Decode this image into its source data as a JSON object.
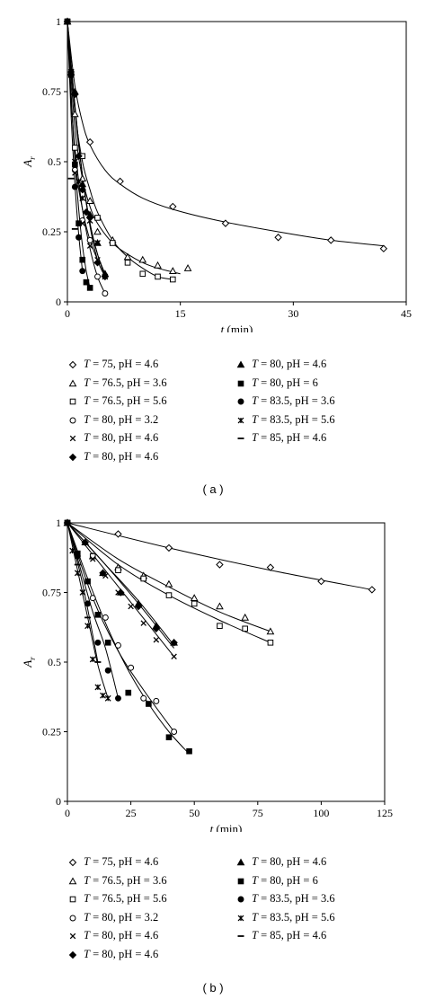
{
  "chart_data": [
    {
      "type": "scatter",
      "panel_label": "( a )",
      "xlabel": "t (min)",
      "ylabel": "A_r",
      "xlim": [
        0,
        45
      ],
      "ylim": [
        0,
        1
      ],
      "xticks": [
        0,
        15,
        30,
        45
      ],
      "yticks": [
        0,
        0.25,
        0.5,
        0.75,
        1
      ],
      "xtick_labels": [
        "0",
        "15",
        "30",
        "45"
      ],
      "ytick_labels": [
        "0",
        "0.25",
        "0.5",
        "0.75",
        "1"
      ],
      "grid": false,
      "legend_position": "bottom",
      "series": [
        {
          "name": "T = 75, pH = 4.6",
          "marker": "diamond-open",
          "x": [
            0,
            3,
            7,
            14,
            21,
            28,
            35,
            42
          ],
          "y": [
            1.0,
            0.57,
            0.43,
            0.34,
            0.28,
            0.23,
            0.22,
            0.19
          ],
          "fit": [
            [
              0,
              1.0
            ],
            [
              1,
              0.77
            ],
            [
              2,
              0.64
            ],
            [
              3,
              0.56
            ],
            [
              5,
              0.47
            ],
            [
              7,
              0.42
            ],
            [
              10,
              0.37
            ],
            [
              14,
              0.33
            ],
            [
              20,
              0.29
            ],
            [
              28,
              0.25
            ],
            [
              35,
              0.22
            ],
            [
              42,
              0.2
            ]
          ]
        },
        {
          "name": "T = 76.5, pH = 3.6",
          "marker": "triangle-open",
          "x": [
            0,
            1,
            2,
            3,
            4,
            6,
            8,
            10,
            12,
            14,
            16
          ],
          "y": [
            1.0,
            0.67,
            0.44,
            0.36,
            0.25,
            0.22,
            0.16,
            0.15,
            0.13,
            0.11,
            0.12
          ],
          "fit": [
            [
              0,
              1.0
            ],
            [
              1,
              0.62
            ],
            [
              2,
              0.44
            ],
            [
              3,
              0.34
            ],
            [
              4,
              0.28
            ],
            [
              6,
              0.21
            ],
            [
              8,
              0.17
            ],
            [
              10,
              0.14
            ],
            [
              12,
              0.12
            ],
            [
              15,
              0.1
            ]
          ]
        },
        {
          "name": "T = 76.5, pH = 5.6",
          "marker": "square-open",
          "x": [
            0,
            1,
            2,
            4,
            6,
            8,
            10,
            12,
            14
          ],
          "y": [
            1.0,
            0.55,
            0.52,
            0.3,
            0.21,
            0.14,
            0.1,
            0.09,
            0.08
          ],
          "fit": [
            [
              0,
              1.0
            ],
            [
              1,
              0.68
            ],
            [
              2,
              0.5
            ],
            [
              3,
              0.4
            ],
            [
              4,
              0.32
            ],
            [
              6,
              0.22
            ],
            [
              8,
              0.16
            ],
            [
              10,
              0.12
            ],
            [
              12,
              0.09
            ],
            [
              14,
              0.08
            ]
          ]
        },
        {
          "name": "T = 80, pH = 3.2",
          "marker": "circle-open",
          "x": [
            0,
            1,
            2,
            3,
            4,
            5
          ],
          "y": [
            1.0,
            0.47,
            0.29,
            0.22,
            0.09,
            0.03
          ],
          "fit": [
            [
              0,
              1.0
            ],
            [
              0.5,
              0.72
            ],
            [
              1,
              0.55
            ],
            [
              2,
              0.33
            ],
            [
              3,
              0.19
            ],
            [
              4,
              0.09
            ],
            [
              5,
              0.03
            ]
          ]
        },
        {
          "name": "T = 80, pH = 4.6",
          "marker": "cross",
          "x": [
            0,
            1,
            2,
            3,
            4
          ],
          "y": [
            1.0,
            0.46,
            0.28,
            0.2,
            0.15
          ],
          "fit": [
            [
              0,
              1.0
            ],
            [
              1,
              0.52
            ],
            [
              2,
              0.33
            ],
            [
              3,
              0.22
            ],
            [
              4,
              0.15
            ]
          ]
        },
        {
          "name": "T = 80, pH = 4.6",
          "marker": "diamond-filled",
          "x": [
            0,
            0.5,
            1,
            1.5,
            2,
            2.5,
            3,
            4,
            5
          ],
          "y": [
            1.0,
            0.81,
            0.74,
            0.52,
            0.4,
            0.32,
            0.3,
            0.14,
            0.09
          ],
          "fit": [
            [
              0,
              1.0
            ],
            [
              1,
              0.7
            ],
            [
              2,
              0.45
            ],
            [
              3,
              0.27
            ],
            [
              4,
              0.15
            ],
            [
              5,
              0.09
            ]
          ]
        },
        {
          "name": "T = 80, pH = 4.6",
          "marker": "triangle-filled",
          "x": [
            0,
            1,
            2,
            3,
            4,
            5
          ],
          "y": [
            1.0,
            0.75,
            0.42,
            0.31,
            0.21,
            0.1
          ],
          "fit": [
            [
              0,
              1.0
            ],
            [
              1,
              0.7
            ],
            [
              2,
              0.45
            ],
            [
              3,
              0.28
            ],
            [
              4,
              0.17
            ],
            [
              5,
              0.1
            ]
          ]
        },
        {
          "name": "T = 80, pH = 6",
          "marker": "square-filled",
          "x": [
            0,
            0.5,
            1,
            1.5,
            2,
            2.5,
            3
          ],
          "y": [
            1.0,
            0.81,
            0.49,
            0.28,
            0.15,
            0.07,
            0.05
          ],
          "fit": [
            [
              0,
              1.0
            ],
            [
              0.5,
              0.72
            ],
            [
              1,
              0.5
            ],
            [
              1.5,
              0.33
            ],
            [
              2,
              0.2
            ],
            [
              2.5,
              0.11
            ],
            [
              3,
              0.05
            ]
          ]
        },
        {
          "name": "T = 83.5, pH = 3.6",
          "marker": "circle-filled",
          "x": [
            0,
            0.5,
            1,
            1.5,
            2
          ],
          "y": [
            1.0,
            0.82,
            0.41,
            0.23,
            0.11
          ],
          "fit": [
            [
              0,
              1.0
            ],
            [
              0.5,
              0.66
            ],
            [
              1,
              0.42
            ],
            [
              1.5,
              0.24
            ],
            [
              2,
              0.11
            ]
          ]
        },
        {
          "name": "T = 83.5, pH = 5.6",
          "marker": "star",
          "x": [
            0,
            0.5,
            1,
            1.5,
            2,
            3,
            4,
            5
          ],
          "y": [
            1.0,
            0.82,
            0.5,
            0.43,
            0.37,
            0.29,
            0.21,
            0.09
          ],
          "fit": [
            [
              0,
              1.0
            ],
            [
              1,
              0.68
            ],
            [
              2,
              0.45
            ],
            [
              3,
              0.28
            ],
            [
              4,
              0.17
            ],
            [
              5,
              0.09
            ]
          ]
        },
        {
          "name": "T = 85, pH = 4.6",
          "marker": "dash",
          "x": [
            0,
            0.5,
            1
          ],
          "y": [
            1.0,
            0.44,
            0.26
          ],
          "fit": []
        }
      ]
    },
    {
      "type": "scatter",
      "panel_label": "( b )",
      "xlabel": "t (min)",
      "ylabel": "A_r",
      "xlim": [
        0,
        125
      ],
      "ylim": [
        0,
        1
      ],
      "xticks": [
        0,
        25,
        50,
        75,
        100,
        125
      ],
      "yticks": [
        0,
        0.25,
        0.5,
        0.75,
        1
      ],
      "xtick_labels": [
        "0",
        "25",
        "50",
        "75",
        "100",
        "125"
      ],
      "ytick_labels": [
        "0",
        "0.25",
        "0.5",
        "0.75",
        "1"
      ],
      "grid": false,
      "legend_position": "bottom",
      "series": [
        {
          "name": "T = 75, pH = 4.6",
          "marker": "diamond-open",
          "x": [
            0,
            20,
            40,
            60,
            80,
            100,
            120
          ],
          "y": [
            1.0,
            0.96,
            0.91,
            0.85,
            0.84,
            0.79,
            0.76
          ],
          "fit": [
            [
              0,
              1.0
            ],
            [
              40,
              0.91
            ],
            [
              80,
              0.83
            ],
            [
              120,
              0.76
            ]
          ]
        },
        {
          "name": "T = 76.5, pH = 3.6",
          "marker": "triangle-open",
          "x": [
            0,
            10,
            20,
            30,
            40,
            50,
            60,
            70,
            80
          ],
          "y": [
            1.0,
            0.88,
            0.84,
            0.81,
            0.78,
            0.73,
            0.7,
            0.66,
            0.61
          ],
          "fit": [
            [
              0,
              1.0
            ],
            [
              20,
              0.87
            ],
            [
              40,
              0.77
            ],
            [
              60,
              0.68
            ],
            [
              80,
              0.61
            ]
          ]
        },
        {
          "name": "T = 76.5, pH = 5.6",
          "marker": "square-open",
          "x": [
            0,
            10,
            20,
            30,
            40,
            50,
            60,
            70,
            80
          ],
          "y": [
            1.0,
            0.88,
            0.83,
            0.8,
            0.74,
            0.71,
            0.63,
            0.62,
            0.57
          ],
          "fit": [
            [
              0,
              1.0
            ],
            [
              20,
              0.85
            ],
            [
              40,
              0.74
            ],
            [
              60,
              0.65
            ],
            [
              80,
              0.57
            ]
          ]
        },
        {
          "name": "T = 80, pH = 3.2",
          "marker": "circle-open",
          "x": [
            0,
            10,
            15,
            20,
            25,
            30,
            35,
            42
          ],
          "y": [
            1.0,
            0.73,
            0.66,
            0.56,
            0.48,
            0.37,
            0.36,
            0.25
          ],
          "fit": [
            [
              0,
              1.0
            ],
            [
              10,
              0.73
            ],
            [
              20,
              0.54
            ],
            [
              30,
              0.4
            ],
            [
              42,
              0.25
            ]
          ]
        },
        {
          "name": "T = 80, pH = 4.6",
          "marker": "cross",
          "x": [
            0,
            10,
            15,
            20,
            25,
            30,
            35,
            42
          ],
          "y": [
            1.0,
            0.87,
            0.81,
            0.75,
            0.7,
            0.64,
            0.58,
            0.52
          ],
          "fit": [
            [
              0,
              1.0
            ],
            [
              14,
              0.84
            ],
            [
              28,
              0.68
            ],
            [
              42,
              0.52
            ]
          ]
        },
        {
          "name": "T = 80, pH = 4.6",
          "marker": "diamond-filled",
          "x": [
            0,
            7,
            14,
            21,
            28,
            35,
            42
          ],
          "y": [
            1.0,
            0.93,
            0.82,
            0.75,
            0.7,
            0.62,
            0.57
          ],
          "fit": [
            [
              0,
              1.0
            ],
            [
              14,
              0.86
            ],
            [
              28,
              0.71
            ],
            [
              42,
              0.55
            ]
          ]
        },
        {
          "name": "T = 80, pH = 4.6",
          "marker": "triangle-filled",
          "x": [
            0,
            7,
            14,
            21,
            28,
            35,
            42
          ],
          "y": [
            1.0,
            0.93,
            0.82,
            0.75,
            0.71,
            0.63,
            0.57
          ],
          "fit": [
            [
              0,
              1.0
            ],
            [
              14,
              0.86
            ],
            [
              28,
              0.72
            ],
            [
              42,
              0.56
            ]
          ]
        },
        {
          "name": "T = 80, pH = 6",
          "marker": "square-filled",
          "x": [
            0,
            4,
            8,
            12,
            16,
            24,
            32,
            40,
            48
          ],
          "y": [
            1.0,
            0.89,
            0.79,
            0.67,
            0.57,
            0.39,
            0.35,
            0.23,
            0.18
          ],
          "fit": [
            [
              0,
              1.0
            ],
            [
              8,
              0.8
            ],
            [
              16,
              0.62
            ],
            [
              24,
              0.47
            ],
            [
              32,
              0.35
            ],
            [
              40,
              0.25
            ],
            [
              48,
              0.17
            ]
          ]
        },
        {
          "name": "T = 83.5, pH = 3.6",
          "marker": "circle-filled",
          "x": [
            0,
            4,
            8,
            12,
            16,
            20
          ],
          "y": [
            1.0,
            0.88,
            0.71,
            0.57,
            0.47,
            0.37
          ],
          "fit": [
            [
              0,
              1.0
            ],
            [
              5,
              0.84
            ],
            [
              10,
              0.68
            ],
            [
              15,
              0.55
            ],
            [
              20,
              0.37
            ]
          ]
        },
        {
          "name": "T = 83.5, pH = 5.6",
          "marker": "star",
          "x": [
            0,
            2,
            4,
            6,
            8,
            10,
            12,
            14,
            16
          ],
          "y": [
            1.0,
            0.9,
            0.82,
            0.75,
            0.63,
            0.51,
            0.41,
            0.38,
            0.37
          ],
          "fit": [
            [
              0,
              1.0
            ],
            [
              4,
              0.83
            ],
            [
              8,
              0.66
            ],
            [
              12,
              0.49
            ],
            [
              16,
              0.37
            ]
          ]
        },
        {
          "name": "T = 85, pH = 4.6",
          "marker": "dash",
          "x": [
            0,
            4,
            8,
            12
          ],
          "y": [
            1.0,
            0.85,
            0.66,
            0.5
          ],
          "fit": [
            [
              0,
              1.0
            ],
            [
              6,
              0.78
            ],
            [
              12,
              0.5
            ]
          ]
        }
      ]
    }
  ]
}
